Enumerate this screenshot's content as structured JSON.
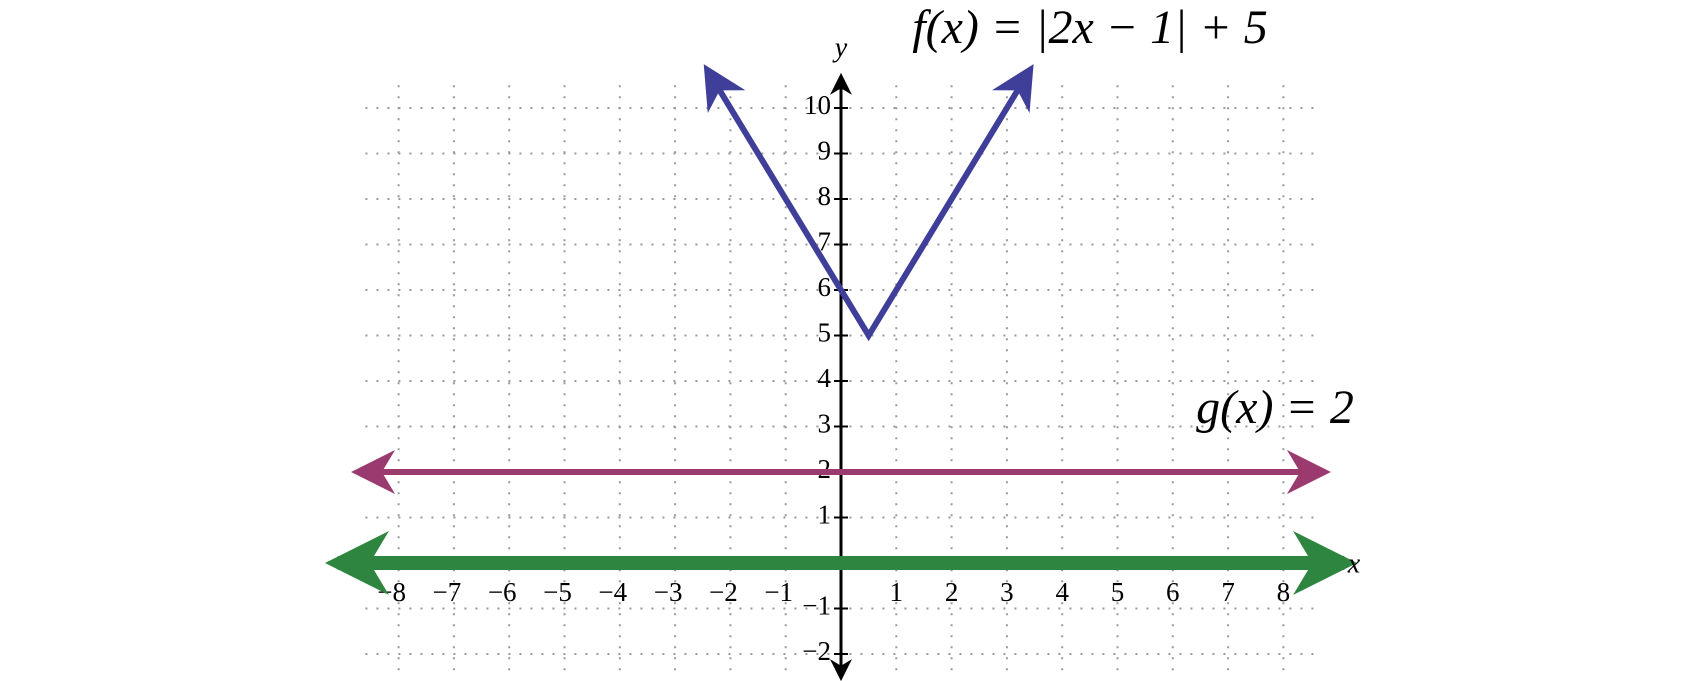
{
  "chart_data": {
    "type": "line",
    "x_label": "x",
    "y_label": "y",
    "xlim": [
      -8.6,
      8.6
    ],
    "ylim": [
      -2.5,
      10.5
    ],
    "xticks": [
      {
        "value": -8,
        "label": "−8"
      },
      {
        "value": -7,
        "label": "−7"
      },
      {
        "value": -6,
        "label": "−6"
      },
      {
        "value": -5,
        "label": "−5"
      },
      {
        "value": -4,
        "label": "−4"
      },
      {
        "value": -3,
        "label": "−3"
      },
      {
        "value": -2,
        "label": "−2"
      },
      {
        "value": -1,
        "label": "−1"
      },
      1,
      2,
      3,
      4,
      5,
      6,
      7,
      8
    ],
    "yticks": [
      {
        "value": -2,
        "label": "−2"
      },
      {
        "value": -1,
        "label": "−1"
      },
      1,
      2,
      3,
      4,
      5,
      6,
      7,
      8,
      9,
      10
    ],
    "grid": true,
    "series": [
      {
        "name": "f(x) = |2x − 1| + 5",
        "color": "#3f3f99",
        "x": [
          -2.4,
          0.5,
          3.4
        ],
        "values": [
          10.8,
          5,
          10.8
        ]
      },
      {
        "name": "g(x) = 2",
        "color": "#9b3a6e",
        "x": [
          -8.7,
          8.7
        ],
        "values": [
          2,
          2
        ]
      },
      {
        "color": "#2e8540",
        "x": [
          -9.1,
          9.1
        ],
        "values": [
          0,
          0
        ]
      }
    ]
  }
}
